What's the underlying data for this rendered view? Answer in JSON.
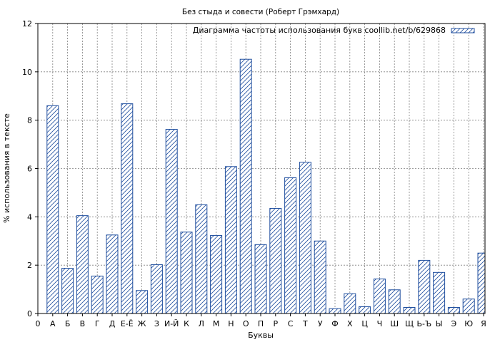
{
  "chart_data": {
    "type": "bar",
    "title": "Без стыда и совести (Роберт Грэмхард)",
    "xlabel": "Буквы",
    "ylabel": "% использования в тексте",
    "ylim": [
      0,
      12
    ],
    "yticks": [
      "0",
      "2",
      "4",
      "6",
      "8",
      "10",
      "12"
    ],
    "x_first_tick": "0",
    "grid": true,
    "legend_position": "top-right",
    "categories": [
      "А",
      "Б",
      "В",
      "Г",
      "Д",
      "Е-Ё",
      "Ж",
      "З",
      "И-Й",
      "К",
      "Л",
      "М",
      "Н",
      "О",
      "П",
      "Р",
      "С",
      "Т",
      "У",
      "Ф",
      "Х",
      "Ц",
      "Ч",
      "Ш",
      "Щ",
      "Ь-Ъ",
      "Ы",
      "Э",
      "Ю",
      "Я"
    ],
    "series": [
      {
        "name": "Диаграмма частоты использования букв coollib.net/b/629868",
        "values": [
          8.6,
          1.87,
          4.05,
          1.55,
          3.25,
          8.68,
          0.95,
          2.02,
          7.62,
          3.37,
          4.5,
          3.23,
          6.08,
          10.52,
          2.85,
          4.35,
          5.62,
          6.26,
          3.0,
          0.2,
          0.82,
          0.28,
          1.43,
          0.98,
          0.25,
          2.2,
          1.7,
          0.25,
          0.6,
          2.5
        ]
      }
    ],
    "colors": {
      "bar_stroke": "#1f4e9e",
      "hatch": "#1f4e9e",
      "grid": "#808080"
    }
  }
}
